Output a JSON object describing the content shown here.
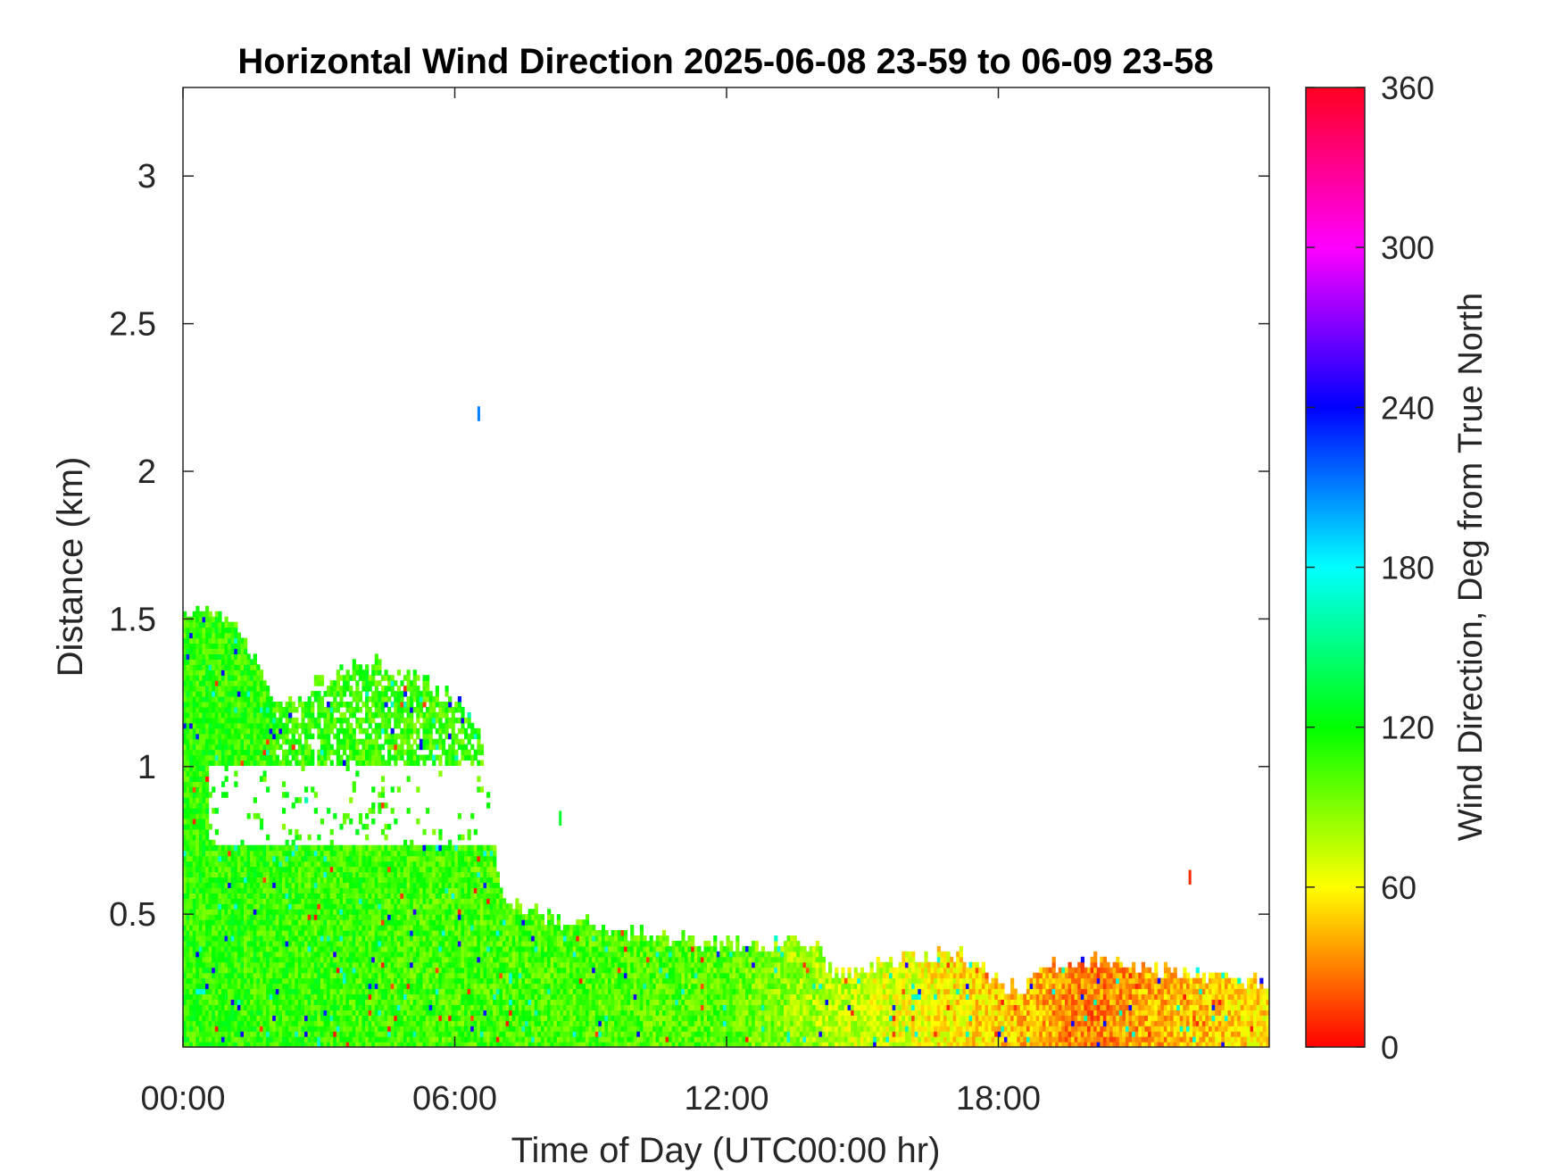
{
  "chart_data": {
    "type": "heatmap",
    "title": "Horizontal Wind Direction 2025-06-08 23-59 to 06-09 23-58",
    "xlabel": "Time of Day (UTC00:00 hr)",
    "ylabel": "Distance (km)",
    "x_unit": "hours",
    "xlim": [
      0,
      23.98
    ],
    "ylim": [
      0.05,
      3.3
    ],
    "x_ticks": [
      {
        "value": 0,
        "label": "00:00"
      },
      {
        "value": 6,
        "label": "06:00"
      },
      {
        "value": 12,
        "label": "12:00"
      },
      {
        "value": 18,
        "label": "18:00"
      }
    ],
    "y_ticks": [
      {
        "value": 0.5,
        "label": "0.5"
      },
      {
        "value": 1,
        "label": "1"
      },
      {
        "value": 1.5,
        "label": "1.5"
      },
      {
        "value": 2,
        "label": "2"
      },
      {
        "value": 2.5,
        "label": "2.5"
      },
      {
        "value": 3,
        "label": "3"
      }
    ],
    "colorbar": {
      "label": "Wind Direction, Deg from True North",
      "range": [
        0,
        360
      ],
      "ticks": [
        {
          "value": 0,
          "label": "0"
        },
        {
          "value": 60,
          "label": "60"
        },
        {
          "value": 120,
          "label": "120"
        },
        {
          "value": 180,
          "label": "180"
        },
        {
          "value": 240,
          "label": "240"
        },
        {
          "value": 300,
          "label": "300"
        },
        {
          "value": 360,
          "label": "360"
        }
      ],
      "colormap": "hsv"
    },
    "data_top_profile_km": [
      [
        0.0,
        1.5
      ],
      [
        0.5,
        1.52
      ],
      [
        1.0,
        1.5
      ],
      [
        1.5,
        1.35
      ],
      [
        2.0,
        1.22
      ],
      [
        2.5,
        1.2
      ],
      [
        3.0,
        1.28
      ],
      [
        3.5,
        1.32
      ],
      [
        4.0,
        1.35
      ],
      [
        4.5,
        1.33
      ],
      [
        5.0,
        1.3
      ],
      [
        5.5,
        1.26
      ],
      [
        6.0,
        1.22
      ],
      [
        6.5,
        1.12
      ],
      [
        7.0,
        0.55
      ],
      [
        7.5,
        0.52
      ],
      [
        8.0,
        0.48
      ],
      [
        8.5,
        0.46
      ],
      [
        9.0,
        0.46
      ],
      [
        9.5,
        0.45
      ],
      [
        10.0,
        0.42
      ],
      [
        10.5,
        0.41
      ],
      [
        11.0,
        0.4
      ],
      [
        11.5,
        0.4
      ],
      [
        12.0,
        0.39
      ],
      [
        12.5,
        0.39
      ],
      [
        13.0,
        0.39
      ],
      [
        13.5,
        0.39
      ],
      [
        14.0,
        0.38
      ],
      [
        14.3,
        0.28
      ],
      [
        15.0,
        0.3
      ],
      [
        15.5,
        0.33
      ],
      [
        16.0,
        0.35
      ],
      [
        16.5,
        0.35
      ],
      [
        17.0,
        0.36
      ],
      [
        17.5,
        0.33
      ],
      [
        18.0,
        0.25
      ],
      [
        18.5,
        0.24
      ],
      [
        19.0,
        0.3
      ],
      [
        19.5,
        0.33
      ],
      [
        20.0,
        0.33
      ],
      [
        20.5,
        0.33
      ],
      [
        21.0,
        0.32
      ],
      [
        21.5,
        0.3
      ],
      [
        22.0,
        0.3
      ],
      [
        22.5,
        0.28
      ],
      [
        23.0,
        0.27
      ],
      [
        23.5,
        0.26
      ],
      [
        23.98,
        0.25
      ]
    ],
    "data_gap_km": {
      "x_range": [
        0.5,
        7.0
      ],
      "from": 0.72,
      "to": 1.0
    },
    "direction_trend_deg": [
      [
        0,
        110
      ],
      [
        6,
        105
      ],
      [
        12,
        100
      ],
      [
        14,
        80
      ],
      [
        16,
        65
      ],
      [
        18,
        50
      ],
      [
        20,
        30
      ],
      [
        22,
        45
      ],
      [
        23.98,
        55
      ]
    ],
    "isolated_returns": [
      {
        "x": 6.5,
        "y": 2.17,
        "dir_deg": 210
      },
      {
        "x": 8.3,
        "y": 0.8,
        "dir_deg": 130
      },
      {
        "x": 22.2,
        "y": 0.6,
        "dir_deg": 10
      }
    ]
  }
}
